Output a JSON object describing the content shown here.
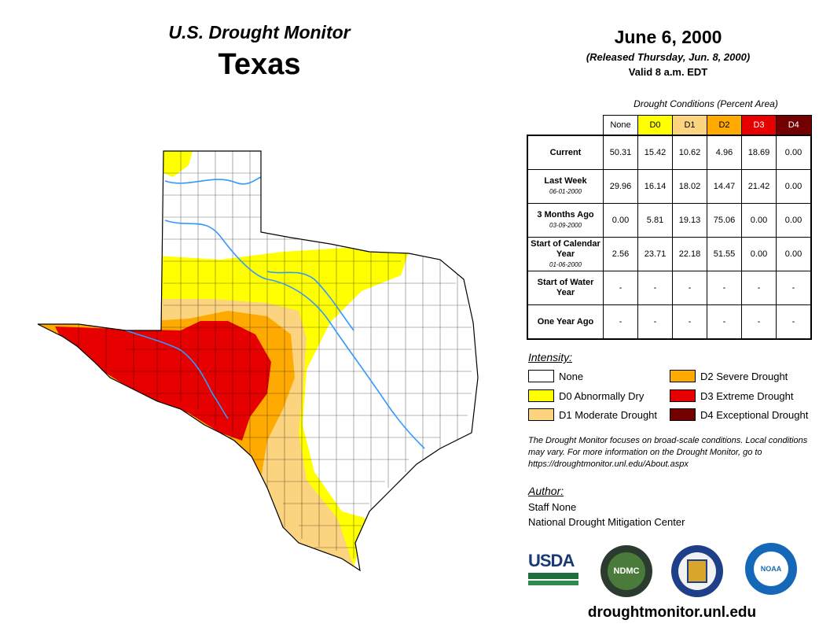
{
  "header": {
    "product": "U.S. Drought Monitor",
    "state": "Texas",
    "date": "June 6, 2000",
    "released": "(Released Thursday, Jun. 8, 2000)",
    "valid": "Valid 8 a.m. EDT"
  },
  "table": {
    "caption": "Drought Conditions (Percent Area)",
    "columns": [
      "None",
      "D0",
      "D1",
      "D2",
      "D3",
      "D4"
    ],
    "rows": [
      {
        "label": "Current",
        "sub": "",
        "values": [
          "50.31",
          "15.42",
          "10.62",
          "4.96",
          "18.69",
          "0.00"
        ]
      },
      {
        "label": "Last Week",
        "sub": "06-01-2000",
        "values": [
          "29.96",
          "16.14",
          "18.02",
          "14.47",
          "21.42",
          "0.00"
        ]
      },
      {
        "label": "3 Months Ago",
        "sub": "03-09-2000",
        "values": [
          "0.00",
          "5.81",
          "19.13",
          "75.06",
          "0.00",
          "0.00"
        ]
      },
      {
        "label": "Start of Calendar Year",
        "sub": "01-06-2000",
        "values": [
          "2.56",
          "23.71",
          "22.18",
          "51.55",
          "0.00",
          "0.00"
        ]
      },
      {
        "label": "Start of Water Year",
        "sub": "",
        "values": [
          "-",
          "-",
          "-",
          "-",
          "-",
          "-"
        ]
      },
      {
        "label": "One Year Ago",
        "sub": "",
        "values": [
          "-",
          "-",
          "-",
          "-",
          "-",
          "-"
        ]
      }
    ]
  },
  "colors": {
    "none": "#ffffff",
    "d0": "#ffff00",
    "d1": "#fcd37f",
    "d2": "#ffaa00",
    "d3": "#e60000",
    "d4": "#730000",
    "rivers": "#3399ff"
  },
  "legend": {
    "title": "Intensity:",
    "items": [
      "None",
      "D0 Abnormally Dry",
      "D1 Moderate Drought",
      "D2 Severe Drought",
      "D3 Extreme Drought",
      "D4 Exceptional Drought"
    ]
  },
  "note": "The Drought Monitor focuses on broad-scale conditions. Local conditions may vary. For more information on the Drought Monitor, go to https://droughtmonitor.unl.edu/About.aspx",
  "author": {
    "title": "Author:",
    "name": "Staff None",
    "org": "National Drought Mitigation Center"
  },
  "logos": {
    "usda": "USDA",
    "ndmc": "NDMC",
    "noaa": "NOAA"
  },
  "url": "droughtmonitor.unl.edu"
}
